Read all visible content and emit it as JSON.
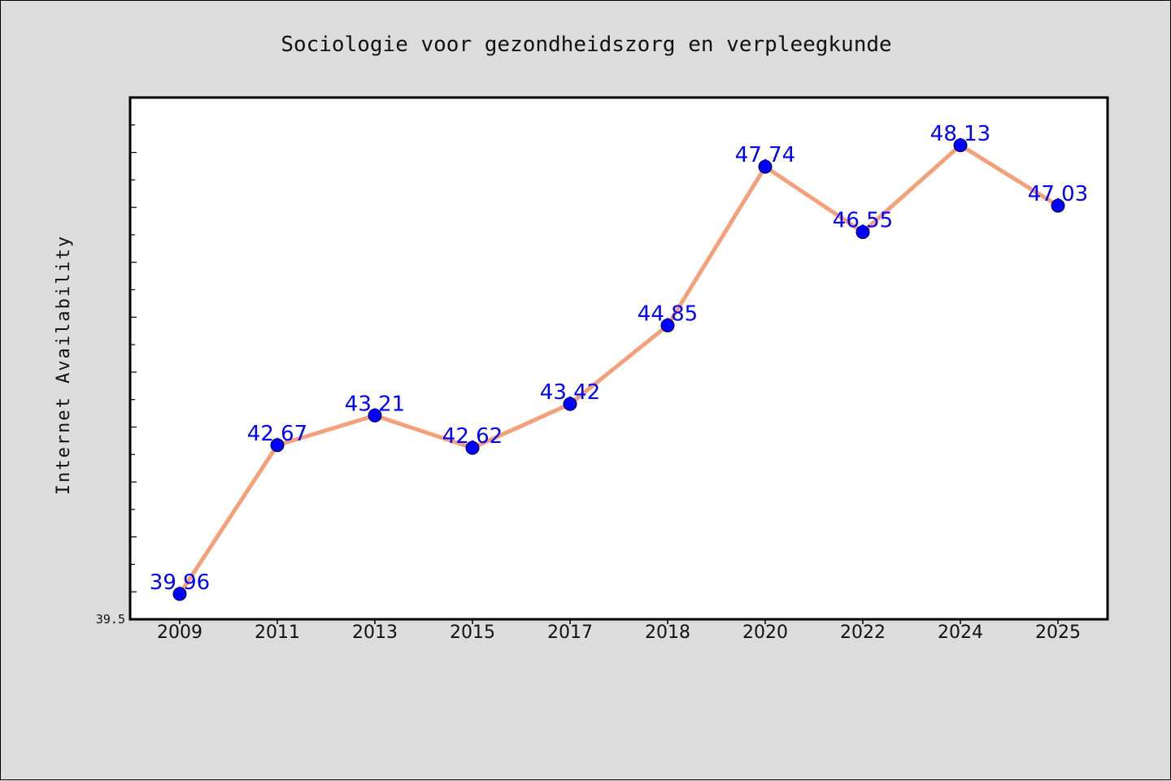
{
  "chart_data": {
    "type": "line",
    "title": "Sociologie voor gezondheidszorg en verpleegkunde",
    "xlabel": "",
    "ylabel": "Internet Availability",
    "categories": [
      "2009",
      "2011",
      "2013",
      "2015",
      "2017",
      "2018",
      "2020",
      "2022",
      "2024",
      "2025"
    ],
    "values": [
      39.96,
      42.67,
      43.21,
      42.62,
      43.42,
      44.85,
      47.74,
      46.55,
      48.13,
      47.03
    ],
    "data_labels": [
      "39.96",
      "42.67",
      "43.21",
      "42.62",
      "43.42",
      "44.85",
      "47.74",
      "46.55",
      "48.13",
      "47.03"
    ],
    "ylim": [
      39.5,
      49.0
    ],
    "ytick_labels": [
      {
        "value": 39.5,
        "label": "39.5"
      }
    ],
    "grid": false,
    "legend": "none",
    "colors": {
      "line": "#f4a07a",
      "marker": "#0000ff",
      "label": "#0000ff",
      "plot_background": "#ffffff",
      "figure_background": "#dcdcdc"
    }
  }
}
